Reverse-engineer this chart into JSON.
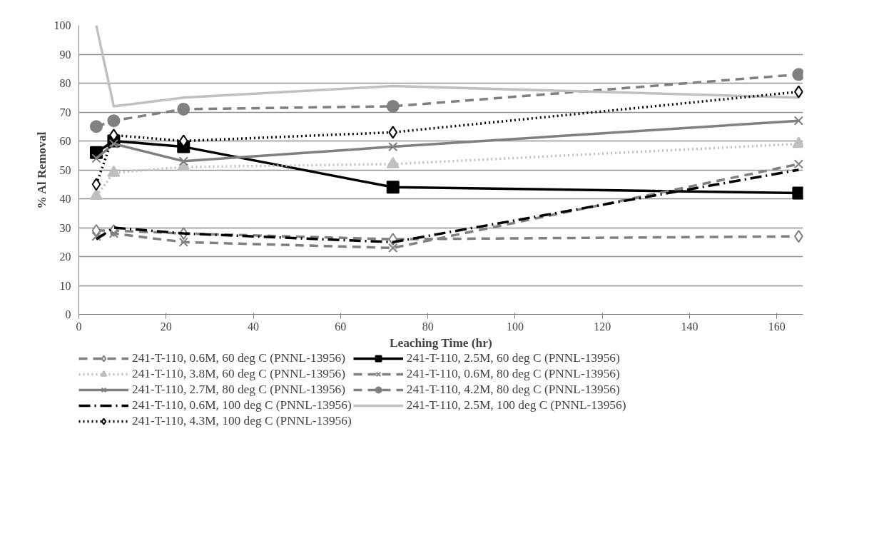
{
  "chart_data": {
    "type": "line",
    "xlabel": "Leaching Time (hr)",
    "ylabel": "% Al Removal",
    "x": [
      4,
      8,
      24,
      72,
      165
    ],
    "xlim": [
      0,
      166
    ],
    "xticks": [
      0,
      20,
      40,
      60,
      80,
      100,
      120,
      140,
      160
    ],
    "ylim": [
      0,
      100
    ],
    "yticks": [
      0,
      10,
      20,
      30,
      40,
      50,
      60,
      70,
      80,
      90,
      100
    ],
    "grid": "y",
    "legend": "bottom",
    "series": [
      {
        "name": "241-T-110, 0.6M, 60 deg C (PNNL-13956)",
        "color": "#808080",
        "marker": "diamond",
        "line_style": "dashed",
        "values": [
          29,
          29,
          28,
          26,
          27
        ]
      },
      {
        "name": "241-T-110, 2.5M, 60 deg C (PNNL-13956)",
        "color": "#000000",
        "marker": "square",
        "line_style": "solid",
        "values": [
          56,
          60,
          58,
          44,
          42
        ]
      },
      {
        "name": "241-T-110, 3.8M, 60 deg C (PNNL-13956)",
        "color": "#bfbfbf",
        "marker": "triangle",
        "line_style": "dotted",
        "values": [
          41,
          49,
          51,
          52,
          59
        ]
      },
      {
        "name": "241-T-110, 0.6M, 80 deg C (PNNL-13956)",
        "color": "#808080",
        "marker": "cross",
        "line_style": "dashed",
        "values": [
          27,
          28,
          25,
          23,
          52
        ]
      },
      {
        "name": "241-T-110, 2.7M, 80 deg C (PNNL-13956)",
        "color": "#808080",
        "marker": "cross",
        "line_style": "solid",
        "values": [
          54,
          59,
          53,
          58,
          67
        ]
      },
      {
        "name": "241-T-110, 4.2M, 80 deg C (PNNL-13956)",
        "color": "#808080",
        "marker": "circle",
        "line_style": "dashed",
        "values": [
          65,
          67,
          71,
          72,
          83
        ]
      },
      {
        "name": "241-T-110, 0.6M, 100 deg C (PNNL-13956)",
        "color": "#000000",
        "marker": "none",
        "line_style": "dashdot",
        "values": [
          26,
          30,
          28,
          25,
          50
        ]
      },
      {
        "name": "241-T-110, 2.5M, 100 deg C (PNNL-13956)",
        "color": "#c0c0c0",
        "marker": "none",
        "line_style": "solid",
        "values": [
          100,
          72,
          75,
          79,
          75
        ]
      },
      {
        "name": "241-T-110, 4.3M, 100 deg C (PNNL-13956)",
        "color": "#000000",
        "marker": "diamond",
        "line_style": "dotted",
        "values": [
          45,
          62,
          60,
          63,
          77
        ]
      }
    ]
  }
}
